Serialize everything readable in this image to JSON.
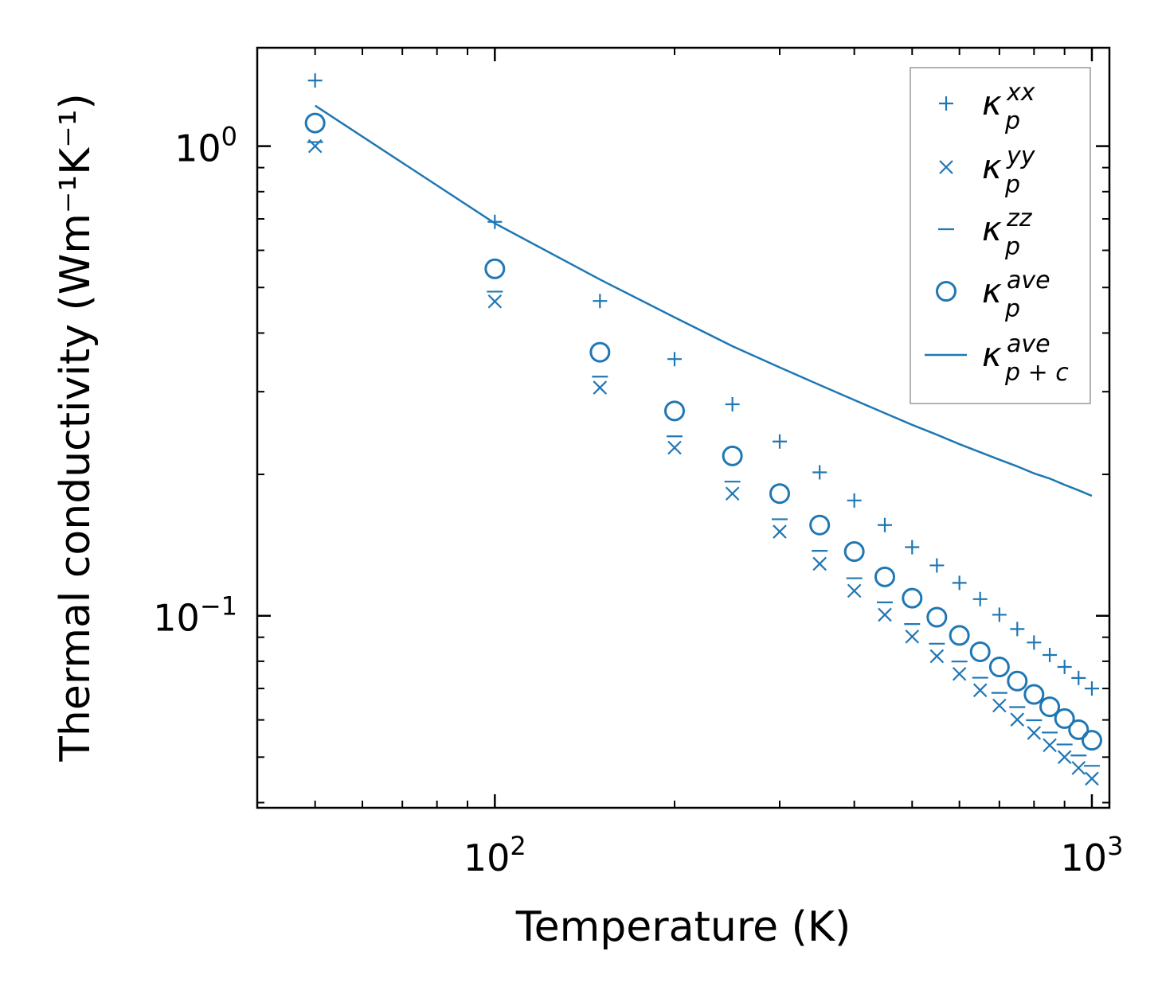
{
  "chart_data": {
    "type": "scatter",
    "xscale": "log",
    "yscale": "log",
    "xlabel": "Temperature (K)",
    "ylabel": "Thermal conductivity (Wm⁻¹K⁻¹)",
    "xlim": [
      40,
      1070
    ],
    "ylim": [
      0.039,
      1.62
    ],
    "xticks": [
      {
        "value": 100,
        "base": "10",
        "exp": "2"
      },
      {
        "value": 1000,
        "base": "10",
        "exp": "3"
      }
    ],
    "yticks": [
      {
        "value": 0.1,
        "base": "10",
        "exp": "−1"
      },
      {
        "value": 1,
        "base": "10",
        "exp": "0"
      }
    ],
    "color": "#1f77b4",
    "legend_position": "upper right",
    "x": [
      50,
      100,
      150,
      200,
      250,
      300,
      350,
      400,
      450,
      500,
      550,
      600,
      650,
      700,
      750,
      800,
      850,
      900,
      950,
      1000
    ],
    "series": [
      {
        "name": "kxx",
        "label_base": "κ",
        "label_sup": "xx",
        "label_sub": "p",
        "marker": "plus",
        "values": [
          1.38,
          0.69,
          0.468,
          0.352,
          0.282,
          0.235,
          0.202,
          0.176,
          0.156,
          0.14,
          0.128,
          0.1175,
          0.1085,
          0.1005,
          0.0937,
          0.0877,
          0.0825,
          0.0778,
          0.0737,
          0.07
        ]
      },
      {
        "name": "kyy",
        "label_base": "κ",
        "label_sup": "yy",
        "label_sub": "p",
        "marker": "x",
        "values": [
          1.0,
          0.467,
          0.306,
          0.228,
          0.182,
          0.151,
          0.129,
          0.113,
          0.1005,
          0.0903,
          0.082,
          0.0752,
          0.0694,
          0.0644,
          0.0601,
          0.0563,
          0.053,
          0.05,
          0.0474,
          0.045
        ]
      },
      {
        "name": "kzz",
        "label_base": "κ",
        "label_sup": "zz",
        "label_sub": "p",
        "marker": "hline",
        "values": [
          1.02,
          0.49,
          0.323,
          0.241,
          0.193,
          0.1605,
          0.1375,
          0.1202,
          0.1068,
          0.096,
          0.0872,
          0.0799,
          0.0738,
          0.0685,
          0.0639,
          0.0599,
          0.0564,
          0.0532,
          0.0504,
          0.0479
        ]
      },
      {
        "name": "kave",
        "label_base": "κ",
        "label_sup": "ave",
        "label_sub": "p",
        "marker": "circle",
        "values": [
          1.12,
          0.548,
          0.364,
          0.273,
          0.219,
          0.182,
          0.156,
          0.137,
          0.121,
          0.109,
          0.0993,
          0.0908,
          0.0838,
          0.0778,
          0.0726,
          0.068,
          0.064,
          0.0604,
          0.0572,
          0.0543
        ]
      },
      {
        "name": "kpc",
        "label_base": "κ",
        "label_sup": "ave",
        "label_sub": "p + c",
        "marker": "line",
        "values": [
          1.22,
          0.685,
          0.52,
          0.432,
          0.375,
          0.338,
          0.31,
          0.288,
          0.27,
          0.255,
          0.243,
          0.232,
          0.223,
          0.215,
          0.208,
          0.201,
          0.196,
          0.19,
          0.185,
          0.18
        ]
      }
    ]
  }
}
